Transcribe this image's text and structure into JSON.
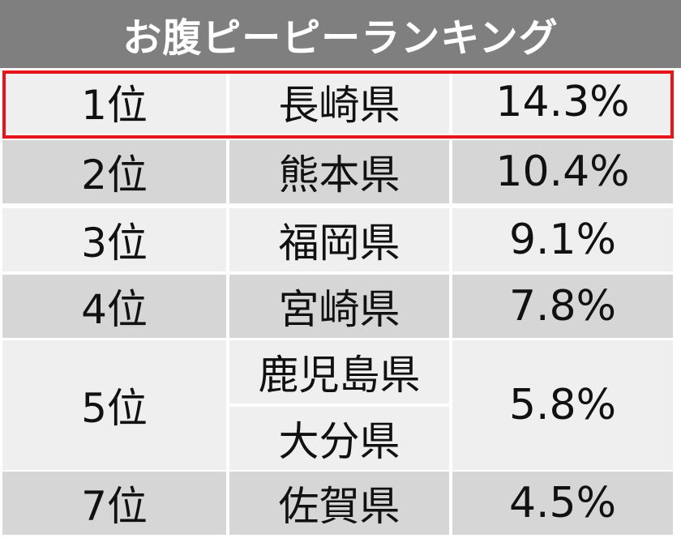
{
  "title": "お腹ピーピーランキング",
  "colors": {
    "header": "#7f7f7f",
    "row_light": "#efefef",
    "row_dark": "#d6d6d6",
    "highlight": "#e8141b"
  },
  "chart_data": {
    "type": "table",
    "title": "お腹ピーピーランキング",
    "rows": [
      {
        "rank": "1位",
        "prefectures": [
          "長崎県"
        ],
        "value": "14.3%"
      },
      {
        "rank": "2位",
        "prefectures": [
          "熊本県"
        ],
        "value": "10.4%"
      },
      {
        "rank": "3位",
        "prefectures": [
          "福岡県"
        ],
        "value": "9.1%"
      },
      {
        "rank": "4位",
        "prefectures": [
          "宮崎県"
        ],
        "value": "7.8%"
      },
      {
        "rank": "5位",
        "prefectures": [
          "鹿児島県",
          "大分県"
        ],
        "value": "5.8%"
      },
      {
        "rank": "7位",
        "prefectures": [
          "佐賀県"
        ],
        "value": "4.5%"
      }
    ],
    "values_percent": [
      14.3,
      10.4,
      9.1,
      7.8,
      5.8,
      5.8,
      4.5
    ],
    "highlighted_rank": "1位"
  }
}
